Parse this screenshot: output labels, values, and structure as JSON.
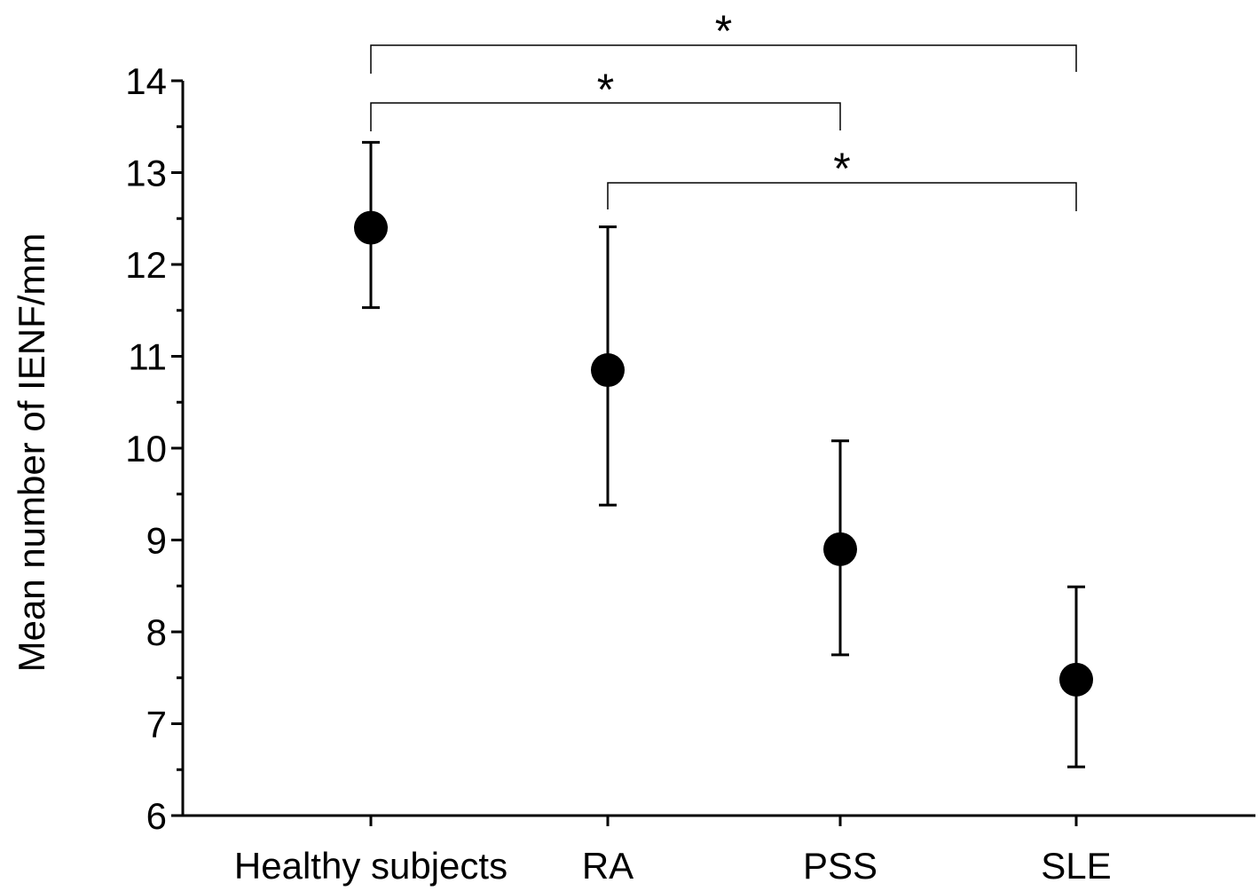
{
  "chart_data": {
    "type": "scatter",
    "categories": [
      "Healthy subjects",
      "RA",
      "PSS",
      "SLE"
    ],
    "series": [
      {
        "values": [
          12.4,
          10.85,
          8.9,
          7.48
        ],
        "err_low": [
          11.53,
          9.38,
          7.75,
          6.53
        ],
        "err_high": [
          13.33,
          12.41,
          10.08,
          8.49
        ]
      }
    ],
    "ylabel": "Mean number of IENF/mm",
    "xlabel": "",
    "title": "",
    "ylim": [
      6,
      14
    ],
    "yticks": [
      "6",
      "7",
      "8",
      "9",
      "10",
      "11",
      "12",
      "13",
      "14"
    ],
    "grid": false,
    "significance": [
      {
        "from": "Healthy subjects",
        "to": "SLE",
        "label": "*"
      },
      {
        "from": "Healthy subjects",
        "to": "PSS",
        "label": "*"
      },
      {
        "from": "RA",
        "to": "SLE",
        "label": "*"
      }
    ]
  }
}
